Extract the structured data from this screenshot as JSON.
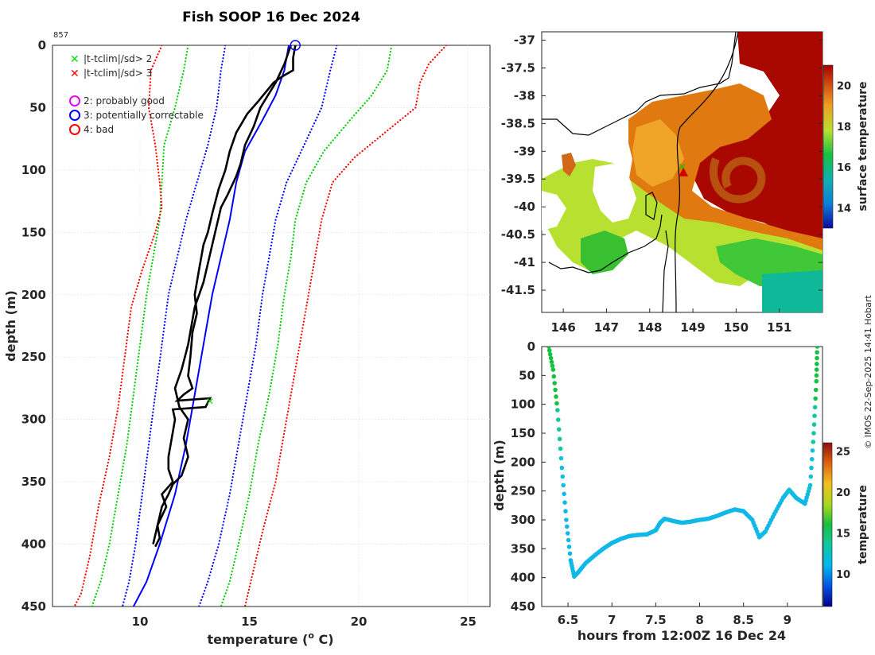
{
  "chart_data": [
    {
      "type": "line",
      "title": "Fish SOOP 16 Dec 2024",
      "profile_id": "857",
      "xlabel_main": "temperature (",
      "xlabel_sup": "o",
      "xlabel_end": " C)",
      "ylabel": "depth (m)",
      "xlim": [
        6,
        26
      ],
      "ylim": [
        0,
        450
      ],
      "xticks": [
        10,
        15,
        20,
        25
      ],
      "yticks": [
        0,
        50,
        100,
        150,
        200,
        250,
        300,
        350,
        400,
        450
      ],
      "legend": [
        {
          "label": "|t-tclim|/sd> 2",
          "marker": "x",
          "color": "#00dd00"
        },
        {
          "label": "|t-tclim|/sd> 3",
          "marker": "x",
          "color": "#ff0000"
        },
        {
          "label": "2: probably good",
          "marker": "o",
          "color": "#ee00ee"
        },
        {
          "label": "3: potentially correctable",
          "marker": "o",
          "color": "#0000ff"
        },
        {
          "label": "4: bad",
          "marker": "o",
          "color": "#ff0000"
        }
      ],
      "series": [
        {
          "name": "climatology mean",
          "color": "#0000ff",
          "style": "solid",
          "points": [
            [
              16.8,
              0
            ],
            [
              16.6,
              20
            ],
            [
              16.2,
              40
            ],
            [
              15.6,
              60
            ],
            [
              14.8,
              85
            ],
            [
              14.4,
              110
            ],
            [
              14.1,
              140
            ],
            [
              13.7,
              170
            ],
            [
              13.3,
              200
            ],
            [
              12.9,
              240
            ],
            [
              12.5,
              280
            ],
            [
              12.1,
              320
            ],
            [
              11.6,
              360
            ],
            [
              10.9,
              400
            ],
            [
              10.3,
              430
            ],
            [
              9.7,
              450
            ]
          ]
        },
        {
          "name": "mean - 2sd",
          "color": "#0000ff",
          "style": "dotted",
          "points": [
            [
              13.9,
              0
            ],
            [
              13.7,
              20
            ],
            [
              13.5,
              50
            ],
            [
              13.1,
              80
            ],
            [
              12.6,
              110
            ],
            [
              12.1,
              140
            ],
            [
              11.7,
              170
            ],
            [
              11.3,
              200
            ],
            [
              11.0,
              240
            ],
            [
              10.7,
              280
            ],
            [
              10.4,
              320
            ],
            [
              10.1,
              360
            ],
            [
              9.8,
              400
            ],
            [
              9.5,
              430
            ],
            [
              9.2,
              450
            ]
          ]
        },
        {
          "name": "mean + 2sd",
          "color": "#0000ff",
          "style": "dotted",
          "points": [
            [
              19.0,
              0
            ],
            [
              18.7,
              20
            ],
            [
              18.3,
              50
            ],
            [
              17.5,
              80
            ],
            [
              16.7,
              110
            ],
            [
              16.2,
              140
            ],
            [
              15.9,
              170
            ],
            [
              15.6,
              200
            ],
            [
              15.3,
              240
            ],
            [
              14.9,
              280
            ],
            [
              14.5,
              320
            ],
            [
              14.1,
              360
            ],
            [
              13.6,
              400
            ],
            [
              13.1,
              430
            ],
            [
              12.7,
              450
            ]
          ]
        },
        {
          "name": "mean - 3sd",
          "color": "#00cc00",
          "style": "dotted",
          "points": [
            [
              12.2,
              0
            ],
            [
              12.0,
              20
            ],
            [
              11.6,
              50
            ],
            [
              11.1,
              80
            ],
            [
              11.0,
              110
            ],
            [
              10.9,
              140
            ],
            [
              10.6,
              170
            ],
            [
              10.3,
              200
            ],
            [
              10.0,
              240
            ],
            [
              9.7,
              280
            ],
            [
              9.4,
              320
            ],
            [
              9.0,
              360
            ],
            [
              8.6,
              400
            ],
            [
              8.2,
              430
            ],
            [
              7.8,
              450
            ]
          ]
        },
        {
          "name": "mean + 3sd",
          "color": "#00cc00",
          "style": "dotted",
          "points": [
            [
              21.5,
              0
            ],
            [
              21.3,
              20
            ],
            [
              20.6,
              40
            ],
            [
              19.6,
              60
            ],
            [
              18.4,
              85
            ],
            [
              17.6,
              110
            ],
            [
              17.1,
              140
            ],
            [
              16.9,
              170
            ],
            [
              16.6,
              200
            ],
            [
              16.3,
              240
            ],
            [
              15.9,
              280
            ],
            [
              15.4,
              320
            ],
            [
              15.0,
              360
            ],
            [
              14.5,
              400
            ],
            [
              14.1,
              430
            ],
            [
              13.7,
              450
            ]
          ]
        },
        {
          "name": "mean - 4sd",
          "color": "#ff0000",
          "style": "dotted",
          "points": [
            [
              11.0,
              0
            ],
            [
              10.5,
              20
            ],
            [
              10.4,
              50
            ],
            [
              10.7,
              80
            ],
            [
              10.9,
              110
            ],
            [
              11.0,
              130
            ],
            [
              10.7,
              150
            ],
            [
              10.1,
              180
            ],
            [
              9.6,
              210
            ],
            [
              9.3,
              250
            ],
            [
              9.0,
              290
            ],
            [
              8.6,
              330
            ],
            [
              8.1,
              370
            ],
            [
              7.7,
              410
            ],
            [
              7.3,
              440
            ],
            [
              7.0,
              450
            ]
          ]
        },
        {
          "name": "mean + 4sd",
          "color": "#ff0000",
          "style": "dotted",
          "points": [
            [
              24.0,
              0
            ],
            [
              23.2,
              15
            ],
            [
              22.8,
              30
            ],
            [
              22.6,
              50
            ],
            [
              21.2,
              70
            ],
            [
              19.8,
              90
            ],
            [
              18.8,
              110
            ],
            [
              18.3,
              140
            ],
            [
              17.9,
              180
            ],
            [
              17.5,
              220
            ],
            [
              17.1,
              260
            ],
            [
              16.7,
              300
            ],
            [
              16.2,
              350
            ],
            [
              15.6,
              390
            ],
            [
              15.2,
              420
            ],
            [
              14.8,
              450
            ]
          ]
        },
        {
          "name": "observed profile",
          "color": "#000000",
          "style": "solid",
          "points": [
            [
              17.1,
              0
            ],
            [
              17.0,
              10
            ],
            [
              17.0,
              20
            ],
            [
              16.5,
              25
            ],
            [
              16.1,
              30
            ],
            [
              15.4,
              45
            ],
            [
              14.9,
              55
            ],
            [
              14.4,
              70
            ],
            [
              14.1,
              85
            ],
            [
              13.9,
              100
            ],
            [
              13.6,
              115
            ],
            [
              13.3,
              135
            ],
            [
              13.1,
              150
            ],
            [
              12.9,
              160
            ],
            [
              12.7,
              180
            ],
            [
              12.5,
              200
            ],
            [
              12.6,
              215
            ],
            [
              12.4,
              230
            ],
            [
              12.3,
              250
            ],
            [
              12.2,
              265
            ],
            [
              12.4,
              275
            ],
            [
              12.0,
              280
            ],
            [
              11.7,
              285
            ],
            [
              13.2,
              283
            ],
            [
              13.0,
              290
            ],
            [
              11.5,
              292
            ],
            [
              11.6,
              300
            ],
            [
              11.3,
              330
            ],
            [
              11.3,
              340
            ],
            [
              11.5,
              350
            ],
            [
              11.0,
              360
            ],
            [
              11.2,
              370
            ],
            [
              10.8,
              385
            ],
            [
              10.6,
              400
            ]
          ]
        },
        {
          "name": "observed profile 2",
          "color": "#000000",
          "style": "solid",
          "points": [
            [
              16.9,
              0
            ],
            [
              16.6,
              15
            ],
            [
              16.2,
              30
            ],
            [
              15.5,
              50
            ],
            [
              15.2,
              65
            ],
            [
              14.8,
              80
            ],
            [
              14.6,
              95
            ],
            [
              14.4,
              105
            ],
            [
              14.0,
              120
            ],
            [
              13.7,
              130
            ],
            [
              13.3,
              160
            ],
            [
              12.9,
              190
            ],
            [
              12.5,
              210
            ],
            [
              12.2,
              240
            ],
            [
              11.9,
              260
            ],
            [
              11.6,
              275
            ],
            [
              11.8,
              290
            ],
            [
              12.2,
              300
            ],
            [
              12.0,
              315
            ],
            [
              12.2,
              330
            ],
            [
              11.9,
              345
            ],
            [
              11.5,
              352
            ],
            [
              11.3,
              360
            ],
            [
              11.0,
              370
            ],
            [
              10.8,
              385
            ],
            [
              10.9,
              395
            ],
            [
              10.7,
              402
            ]
          ]
        }
      ],
      "flags": [
        {
          "marker": "o",
          "color": "#0000ff",
          "x": 17.1,
          "y": 0
        },
        {
          "marker": "x",
          "color": "#00dd00",
          "x": 13.2,
          "y": 285
        }
      ]
    },
    {
      "type": "heatmap",
      "xticks": [
        146,
        147,
        148,
        149,
        150,
        151
      ],
      "yticks": [
        -37,
        -37.5,
        -38,
        -38.5,
        -39,
        -39.5,
        -40,
        -40.5,
        -41,
        -41.5
      ],
      "xlim": [
        145.5,
        152
      ],
      "ylim": [
        -41.9,
        -36.85
      ],
      "colorbar_label": "surface temperature",
      "colorbar_ticks": [
        14,
        16,
        18,
        20
      ],
      "clim": [
        13,
        21
      ],
      "markers": [
        {
          "marker": "x",
          "color": "#00cc00",
          "lon": 148.75,
          "lat": -39.27
        },
        {
          "marker": "triangle",
          "color": "#cc0000",
          "lon": 148.78,
          "lat": -39.38
        }
      ]
    },
    {
      "type": "scatter",
      "xlabel": "hours from 12:00Z 16 Dec 24",
      "ylabel": "depth (m)",
      "colorbar_label": "temperature",
      "xlim": [
        6.2,
        9.4
      ],
      "ylim": [
        0,
        450
      ],
      "xticks": [
        6.5,
        7,
        7.5,
        8,
        8.5,
        9
      ],
      "xtick_labels": [
        "6.5",
        "7",
        "7.5",
        "8",
        "8.5",
        "9"
      ],
      "yticks": [
        0,
        50,
        100,
        150,
        200,
        250,
        300,
        350,
        400,
        450
      ],
      "colorbar_ticks": [
        10,
        15,
        20,
        25
      ],
      "clim": [
        6,
        26
      ],
      "track": [
        [
          6.28,
          0
        ],
        [
          6.33,
          40
        ],
        [
          6.38,
          110
        ],
        [
          6.43,
          210
        ],
        [
          6.48,
          300
        ],
        [
          6.53,
          370
        ],
        [
          6.57,
          398
        ],
        [
          6.62,
          390
        ],
        [
          6.7,
          375
        ],
        [
          6.8,
          362
        ],
        [
          6.9,
          350
        ],
        [
          7.0,
          340
        ],
        [
          7.1,
          333
        ],
        [
          7.2,
          328
        ],
        [
          7.3,
          326
        ],
        [
          7.4,
          325
        ],
        [
          7.5,
          318
        ],
        [
          7.55,
          305
        ],
        [
          7.6,
          298
        ],
        [
          7.7,
          302
        ],
        [
          7.8,
          305
        ],
        [
          7.9,
          303
        ],
        [
          8.0,
          300
        ],
        [
          8.1,
          298
        ],
        [
          8.2,
          293
        ],
        [
          8.3,
          287
        ],
        [
          8.4,
          282
        ],
        [
          8.5,
          285
        ],
        [
          8.6,
          300
        ],
        [
          8.68,
          330
        ],
        [
          8.75,
          320
        ],
        [
          8.85,
          290
        ],
        [
          8.95,
          262
        ],
        [
          9.02,
          248
        ],
        [
          9.1,
          262
        ],
        [
          9.2,
          272
        ],
        [
          9.26,
          240
        ],
        [
          9.3,
          150
        ],
        [
          9.33,
          60
        ],
        [
          9.34,
          0
        ]
      ]
    }
  ],
  "credit": "© IMOS 22-Sep-2025 14:41 Hobart"
}
